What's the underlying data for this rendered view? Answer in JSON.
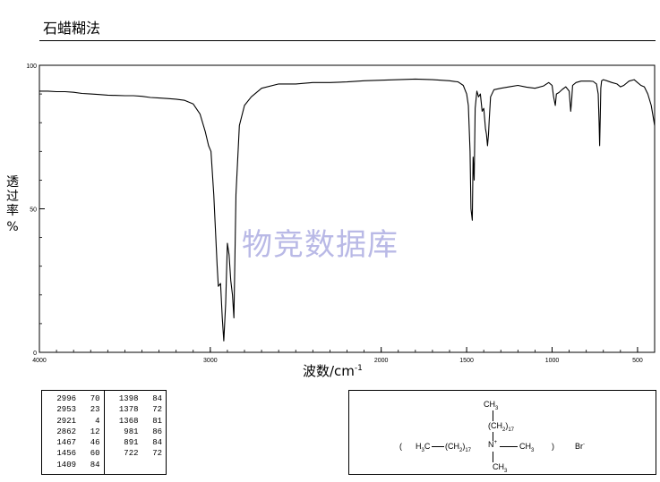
{
  "header": {
    "title": "石蜡糊法"
  },
  "watermark": "物竞数据库",
  "axes": {
    "ylabel_chars": [
      "透",
      "过",
      "率"
    ],
    "ylabel_unit": "%",
    "xlabel_main": "波数/cm",
    "xlabel_sup": "-1"
  },
  "chart_data": {
    "type": "line",
    "xlabel": "波数/cm-1",
    "ylabel": "透过率 %",
    "xlim": [
      4000,
      400
    ],
    "ylim": [
      0,
      100
    ],
    "x_reversed": true,
    "x_ticks": [
      4000,
      3000,
      2000,
      1500,
      1000,
      500
    ],
    "y_ticks": [
      0,
      50,
      100
    ],
    "series": [
      {
        "x": [
          4000,
          3950,
          3900,
          3850,
          3800,
          3750,
          3700,
          3650,
          3600,
          3550,
          3500,
          3450,
          3400,
          3350,
          3300,
          3250,
          3200,
          3150,
          3100,
          3060,
          3030,
          3010,
          2996,
          2980,
          2960,
          2953,
          2940,
          2930,
          2921,
          2910,
          2900,
          2890,
          2880,
          2870,
          2862,
          2850,
          2830,
          2800,
          2760,
          2700,
          2600,
          2500,
          2400,
          2300,
          2200,
          2100,
          2000,
          1900,
          1800,
          1700,
          1600,
          1550,
          1520,
          1500,
          1490,
          1480,
          1475,
          1467,
          1462,
          1456,
          1450,
          1440,
          1430,
          1420,
          1409,
          1400,
          1398,
          1390,
          1384,
          1378,
          1372,
          1368,
          1360,
          1340,
          1300,
          1250,
          1200,
          1150,
          1100,
          1050,
          1020,
          1000,
          991,
          981,
          975,
          960,
          940,
          920,
          900,
          891,
          885,
          880,
          860,
          830,
          800,
          780,
          760,
          740,
          730,
          725,
          722,
          718,
          715,
          710,
          700,
          680,
          650,
          620,
          600,
          580,
          550,
          520,
          500,
          480,
          460,
          440,
          420,
          400
        ],
        "y": [
          91,
          91,
          90.8,
          90.8,
          90.6,
          90.2,
          90,
          89.8,
          89.6,
          89.5,
          89.4,
          89.4,
          89.2,
          88.8,
          88.6,
          88.4,
          88.2,
          87.8,
          86.5,
          83,
          77,
          72,
          70,
          55,
          30,
          23,
          24,
          12,
          4,
          17,
          38,
          34,
          25,
          20,
          12,
          55,
          79,
          86,
          89,
          92,
          93.5,
          93.5,
          94,
          94,
          94.2,
          94.6,
          94.8,
          95,
          95.2,
          95,
          94.6,
          94.2,
          93,
          90,
          86,
          70,
          50,
          46,
          68,
          60,
          85,
          91,
          89,
          90,
          84,
          85,
          84,
          78,
          76,
          72,
          76,
          81,
          89,
          91.5,
          92,
          92.5,
          93,
          92.4,
          92,
          92.8,
          94,
          93,
          89,
          86,
          90,
          90.5,
          91.6,
          92.5,
          91,
          84,
          88,
          93,
          94,
          94.5,
          94.5,
          94.5,
          94.4,
          93.5,
          90,
          80,
          72,
          82,
          92,
          94.6,
          95,
          94.6,
          94,
          93.5,
          92.5,
          93,
          94.5,
          95,
          94,
          93,
          92.5,
          90,
          86,
          79
        ]
      }
    ],
    "peak_table": [
      [
        "2996",
        "70"
      ],
      [
        "2953",
        "23"
      ],
      [
        "2921",
        "4"
      ],
      [
        "2862",
        "12"
      ],
      [
        "1467",
        "46"
      ],
      [
        "1456",
        "60"
      ],
      [
        "1409",
        "84"
      ],
      [
        "1398",
        "84"
      ],
      [
        "1378",
        "72"
      ],
      [
        "1368",
        "81"
      ],
      [
        "981",
        "86"
      ],
      [
        "891",
        "84"
      ],
      [
        "722",
        "72"
      ]
    ]
  },
  "structure": {
    "top_ch3": "CH3",
    "top_chain": "(CH2)17",
    "left_paren": "(",
    "h3c": "H3C",
    "mid_chain": "(CH2)17",
    "n_plus": "N+",
    "right_ch3": "CH3",
    "right_paren": ")",
    "counter_ion": "Br-",
    "bottom_ch3": "CH3"
  }
}
